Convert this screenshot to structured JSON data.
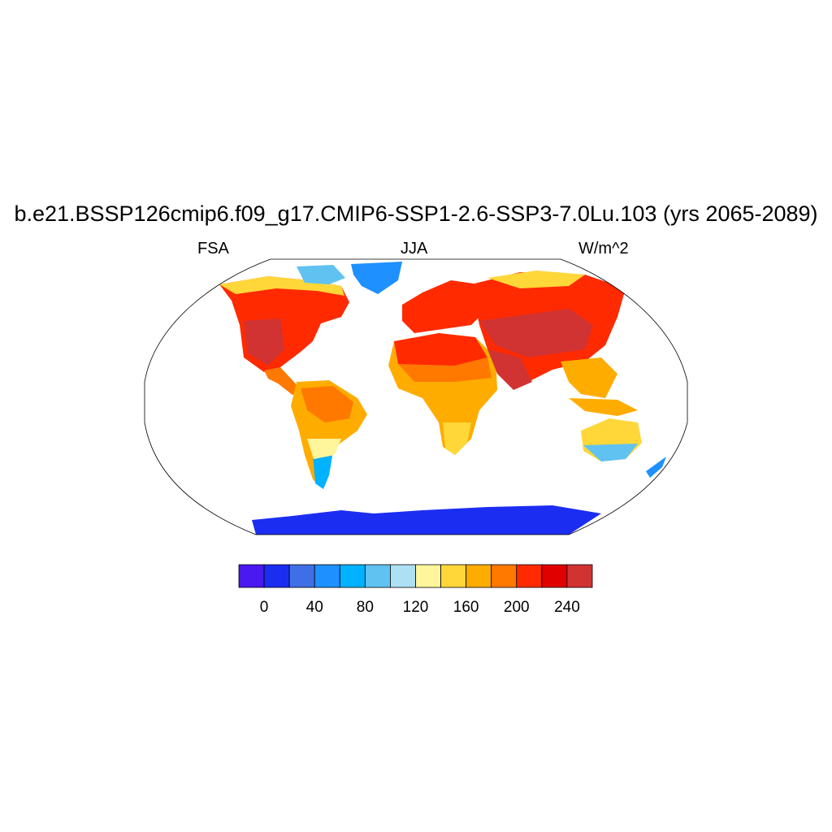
{
  "title": "b.e21.BSSP126cmip6.f09_g17.CMIP6-SSP1-2.6-SSP3-7.0Lu.103 (yrs 2065-2089)",
  "left_label": "FSA",
  "center_label": "JJA",
  "right_label": "W/m^2",
  "chart_data": {
    "type": "heatmap",
    "projection": "Robinson (global map)",
    "variable": "FSA",
    "season": "JJA",
    "units": "W/m^2",
    "colorbar": {
      "levels": [
        0,
        20,
        40,
        60,
        80,
        100,
        120,
        140,
        160,
        180,
        200,
        220,
        240
      ],
      "tick_labels": [
        "0",
        "40",
        "80",
        "120",
        "160",
        "200",
        "240"
      ],
      "colors": [
        "#4a18f0",
        "#1c2df2",
        "#3f6fe6",
        "#1e90ff",
        "#00b2ff",
        "#60c2f0",
        "#ade0f2",
        "#fff59b",
        "#ffd738",
        "#ffac00",
        "#ff7800",
        "#ff2a00",
        "#e00000",
        "#d13333"
      ]
    },
    "regions": [
      {
        "name": "North America",
        "range": [
          140,
          260
        ]
      },
      {
        "name": "Greenland / Canadian Arctic",
        "range": [
          40,
          120
        ]
      },
      {
        "name": "South America",
        "range": [
          60,
          240
        ]
      },
      {
        "name": "Africa",
        "range": [
          140,
          260
        ]
      },
      {
        "name": "Europe",
        "range": [
          160,
          240
        ]
      },
      {
        "name": "Asia",
        "range": [
          160,
          260
        ]
      },
      {
        "name": "Siberian coast",
        "range": [
          100,
          160
        ]
      },
      {
        "name": "Australia",
        "range": [
          80,
          180
        ]
      },
      {
        "name": "Antarctica",
        "range": [
          0,
          40
        ]
      }
    ]
  }
}
